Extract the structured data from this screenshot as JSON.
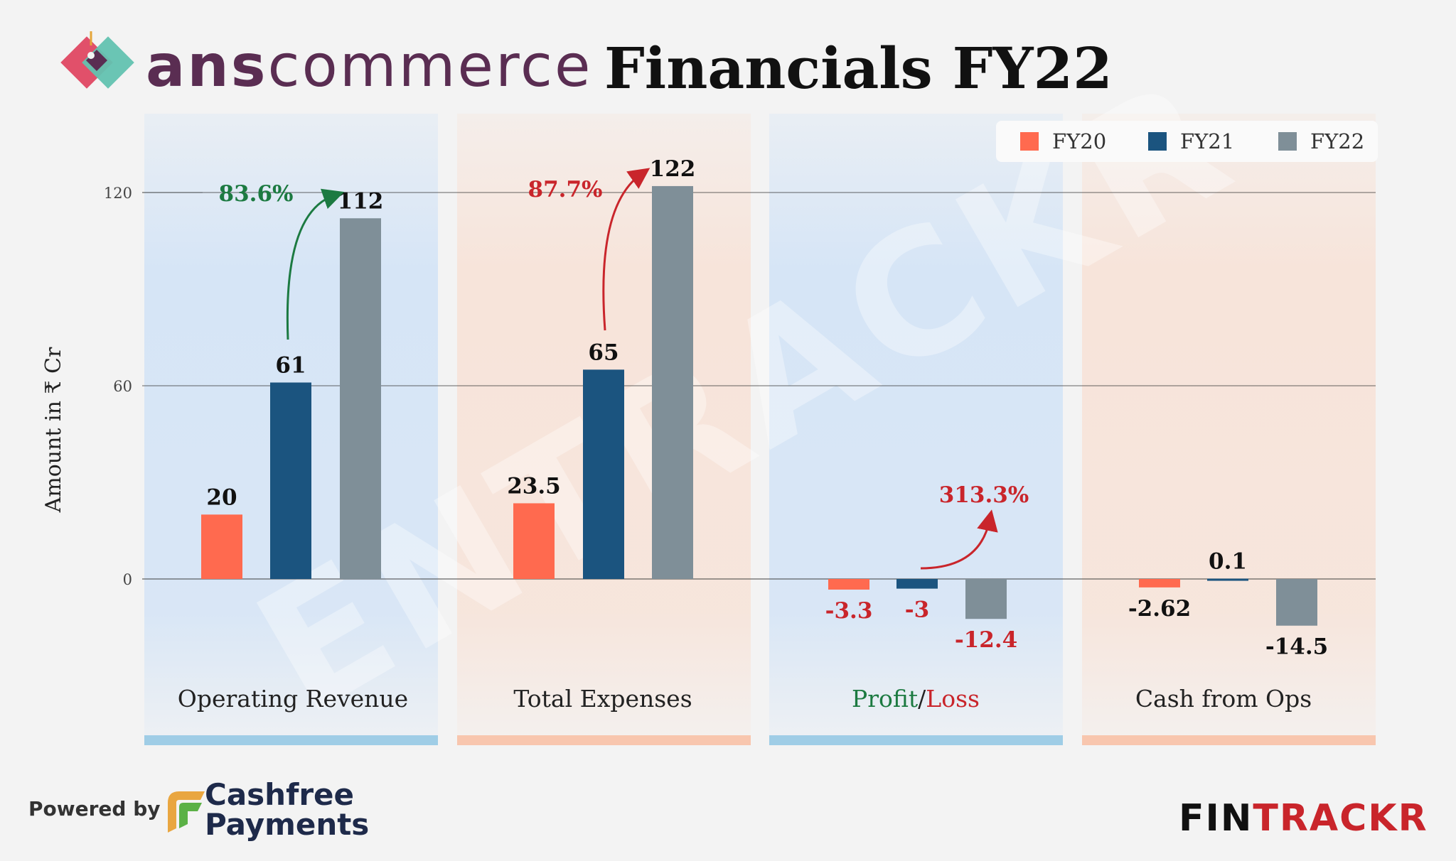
{
  "header": {
    "brand_part1": "ans",
    "brand_part2": "commerce",
    "title": "Financials FY22"
  },
  "colors": {
    "fy20": "#ff6a4f",
    "fy21": "#1b547f",
    "fy22": "#7f8f98",
    "panel_blue": "#d6e5f6",
    "panel_peach": "#f7e4da",
    "strip_blue": "#9fcde6",
    "strip_peach": "#f8c6ae",
    "growth_green": "#1c7a41",
    "loss_red": "#c9252b"
  },
  "chart_data": {
    "type": "bar",
    "ylabel": "Amount in ₹ Cr",
    "ylim": [
      -50,
      140
    ],
    "yticks": [
      0,
      60,
      120
    ],
    "grid": true,
    "legend_position": "top-right",
    "categories": [
      "Operating Revenue",
      "Total Expenses",
      "Profit/Loss",
      "Cash from Ops"
    ],
    "series": [
      {
        "name": "FY20",
        "values": [
          20,
          23.5,
          -3.3,
          -2.62
        ],
        "labels": [
          "20",
          "23.5",
          "-3.3",
          "-2.62"
        ]
      },
      {
        "name": "FY21",
        "values": [
          61,
          65,
          -3,
          0.1
        ],
        "labels": [
          "61",
          "65",
          "-3",
          "0.1"
        ]
      },
      {
        "name": "FY22",
        "values": [
          112,
          122,
          -12.4,
          -14.5
        ],
        "labels": [
          "112",
          "122",
          "-12.4",
          "-14.5"
        ]
      }
    ],
    "annotations": [
      {
        "category": 0,
        "text": "83.6%",
        "tone": "growth"
      },
      {
        "category": 1,
        "text": "87.7%",
        "tone": "loss"
      },
      {
        "category": 2,
        "text": "313.3%",
        "tone": "loss"
      }
    ],
    "category_label_parts": {
      "profit": "Profit",
      "separator": "/",
      "loss": "Loss"
    },
    "watermark": "ENTRACKR"
  },
  "footer": {
    "powered_by": "Powered by",
    "partner_line1": "Cashfree",
    "partner_line2": "Payments",
    "brand_part1": "FIN",
    "brand_part2": "TRACKR"
  }
}
